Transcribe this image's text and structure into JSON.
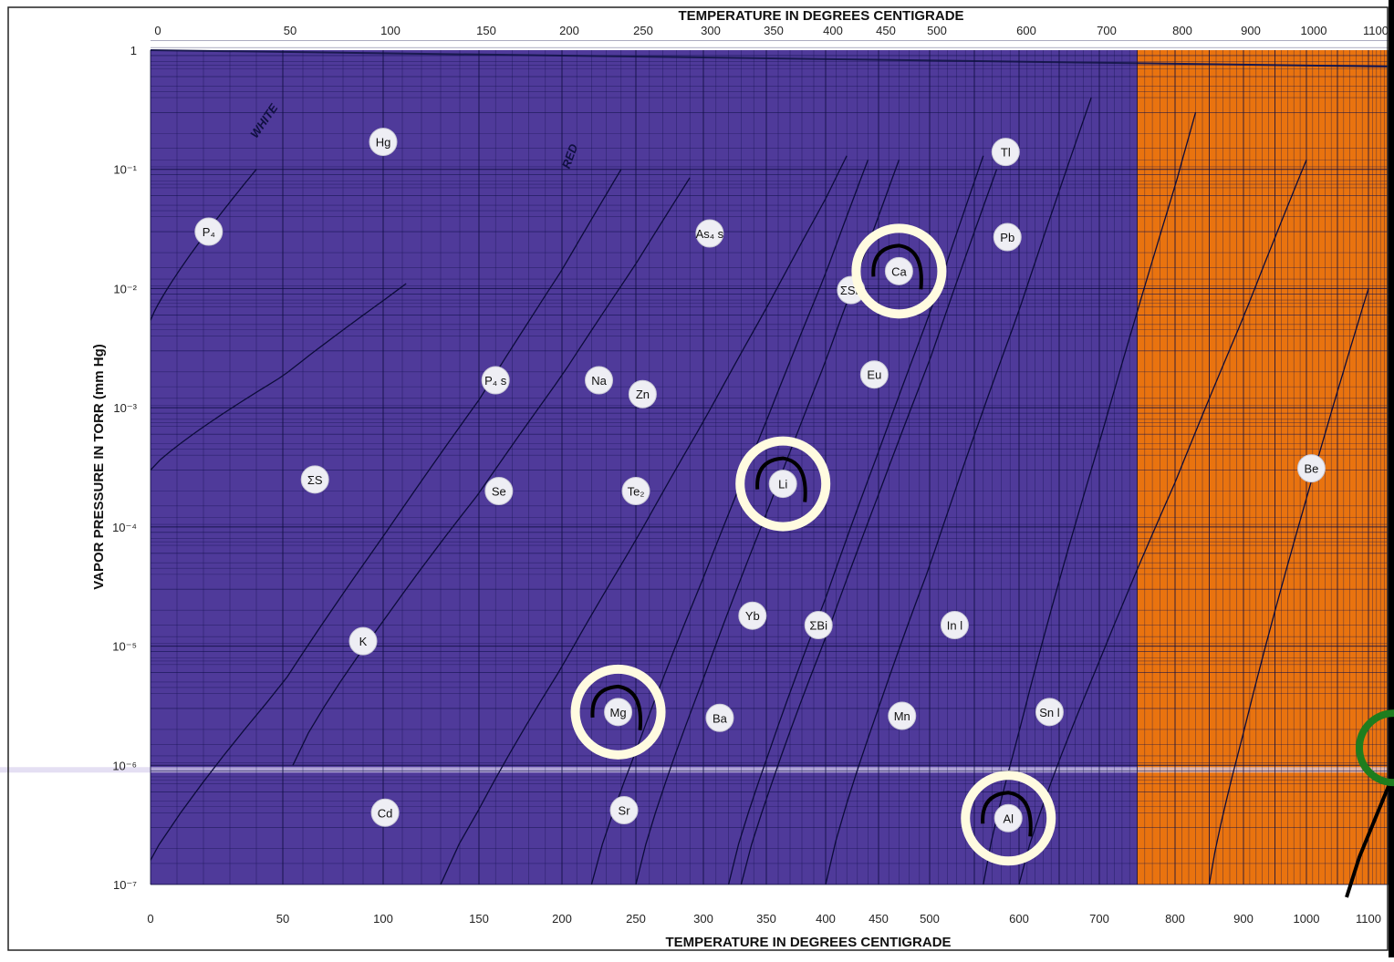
{
  "chart_data": {
    "type": "line",
    "title": "",
    "xlabel": "TEMPERATURE IN DEGREES CENTIGRADE",
    "x2label": "TEMPERATURE IN DEGREES CENTIGRADE",
    "ylabel": "VAPOR PRESSURE IN TORR (mm Hg)",
    "yscale": "log",
    "ylim": [
      1e-07,
      1
    ],
    "xlim": [
      0,
      1100
    ],
    "x_ticks_bottom": [
      "0",
      "50",
      "100",
      "150",
      "200",
      "250",
      "300",
      "350",
      "400",
      "450",
      "500",
      "600",
      "700",
      "800",
      "900",
      "1000",
      "1100"
    ],
    "x_ticks_top": [
      "0",
      "50",
      "100",
      "150",
      "200",
      "250",
      "300",
      "350",
      "400",
      "450",
      "500",
      "600",
      "700",
      "800",
      "900",
      "1000",
      "1100"
    ],
    "y_ticks": [
      "1",
      "10⁻¹",
      "10⁻²",
      "10⁻³",
      "10⁻⁴",
      "10⁻⁵",
      "10⁻⁶",
      "10⁻⁷"
    ],
    "regions": [
      {
        "x_range": [
          0,
          750
        ],
        "color": "#4f3a9a"
      },
      {
        "x_range": [
          750,
          1100
        ],
        "color": "#e9730f"
      }
    ],
    "curve_annotations": [
      "WHITE",
      "RED"
    ],
    "labels": [
      {
        "text": "P₄",
        "x": 22,
        "y": 0.03
      },
      {
        "text": "Hg",
        "x": 100,
        "y": 0.17
      },
      {
        "text": "ΣS",
        "x": 66,
        "y": 0.00025
      },
      {
        "text": "K",
        "x": 90,
        "y": 1.1e-05
      },
      {
        "text": "Cd",
        "x": 101,
        "y": 4e-07
      },
      {
        "text": "P₄ s",
        "x": 160,
        "y": 0.0017
      },
      {
        "text": "Se",
        "x": 162,
        "y": 0.0002
      },
      {
        "text": "Na",
        "x": 225,
        "y": 0.0017
      },
      {
        "text": "Zn",
        "x": 255,
        "y": 0.0013
      },
      {
        "text": "Te₂",
        "x": 250,
        "y": 0.0002
      },
      {
        "text": "As₄ s",
        "x": 305,
        "y": 0.029
      },
      {
        "text": "Mg",
        "x": 238,
        "y": 2.8e-06
      },
      {
        "text": "Sr",
        "x": 242,
        "y": 4.2e-07
      },
      {
        "text": "Ba",
        "x": 313,
        "y": 2.5e-06
      },
      {
        "text": "Yb",
        "x": 339,
        "y": 1.8e-05
      },
      {
        "text": "Li",
        "x": 364,
        "y": 0.00023
      },
      {
        "text": "ΣBi",
        "x": 394,
        "y": 1.5e-05
      },
      {
        "text": "ΣSb",
        "x": 424,
        "y": 0.0097
      },
      {
        "text": "Eu",
        "x": 446,
        "y": 0.0019
      },
      {
        "text": "Ca",
        "x": 470,
        "y": 0.014
      },
      {
        "text": "Mn",
        "x": 473,
        "y": 2.6e-06
      },
      {
        "text": "In l",
        "x": 528,
        "y": 1.5e-05
      },
      {
        "text": "Tl",
        "x": 585,
        "y": 0.14
      },
      {
        "text": "Pb",
        "x": 587,
        "y": 0.027
      },
      {
        "text": "Al",
        "x": 588,
        "y": 3.6e-07
      },
      {
        "text": "Sn l",
        "x": 638,
        "y": 2.8e-06
      },
      {
        "text": "Be",
        "x": 1008,
        "y": 0.00031
      }
    ],
    "highlighted": [
      "Ca",
      "Li",
      "Mg",
      "Al"
    ],
    "curves": [
      {
        "x": [
          0,
          40
        ],
        "y": [
          0.0054,
          0.1
        ]
      },
      {
        "x": [
          0,
          112
        ],
        "y": [
          0.0003,
          0.011
        ]
      },
      {
        "x": [
          55,
          290
        ],
        "y": [
          1e-06,
          0.085
        ]
      },
      {
        "x": [
          -5,
          240
        ],
        "y": [
          1e-07,
          0.1
        ]
      },
      {
        "x": [
          130,
          420
        ],
        "y": [
          1e-07,
          0.13
        ]
      },
      {
        "x": [
          220,
          440
        ],
        "y": [
          1e-07,
          0.12
        ]
      },
      {
        "x": [
          250,
          470
        ],
        "y": [
          1e-07,
          0.12
        ]
      },
      {
        "x": [
          320,
          560
        ],
        "y": [
          1e-07,
          0.13
        ]
      },
      {
        "x": [
          330,
          575
        ],
        "y": [
          1e-07,
          0.1
        ]
      },
      {
        "x": [
          400,
          690
        ],
        "y": [
          1e-07,
          0.4
        ]
      },
      {
        "x": [
          560,
          830
        ],
        "y": [
          1e-07,
          0.3
        ]
      },
      {
        "x": [
          600,
          1000
        ],
        "y": [
          1e-07,
          0.12
        ]
      },
      {
        "x": [
          850,
          1100
        ],
        "y": [
          1e-07,
          0.01
        ]
      }
    ]
  },
  "annotations": [
    {
      "shape": "circle",
      "target": "Ca",
      "color": "#fffbe0"
    },
    {
      "shape": "circle",
      "target": "Li",
      "color": "#fffbe0"
    },
    {
      "shape": "circle",
      "target": "Mg",
      "color": "#fffbe0"
    },
    {
      "shape": "circle",
      "target": "Al",
      "color": "#fffbe0"
    },
    {
      "shape": "circle",
      "target": "edge",
      "color": "#1e7d1e"
    }
  ]
}
